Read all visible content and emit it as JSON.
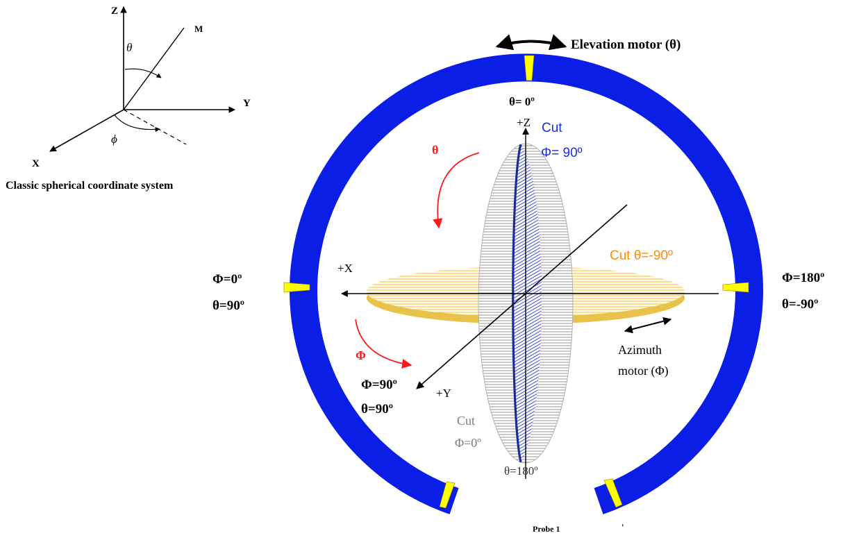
{
  "inset": {
    "axis_z": "Z",
    "axis_y": "Y",
    "axis_x": "X",
    "point_m": "M",
    "theta": "θ",
    "phi": "ϕ",
    "caption": "Classic spherical coordinate system"
  },
  "main": {
    "elevation_label": "Elevation motor (θ)",
    "theta_zero": "θ= 0º",
    "plus_z": "+Z",
    "cut_phi90_line1": "Cut",
    "cut_phi90_line2": "Φ= 90º",
    "theta_red": "θ",
    "cut_theta90": "Cut  θ=-90º",
    "plus_x": "+X",
    "left_phi": "Φ=0º",
    "left_theta": "θ=90º",
    "right_phi": "Φ=180º",
    "right_theta": "θ=-90º",
    "azimuth_line1": "Azimuth",
    "azimuth_line2": "motor (Φ)",
    "phi_red": "Φ",
    "bottom_phi": "Φ=90º",
    "bottom_theta": "θ=90º",
    "plus_y": "+Y",
    "cut_phi0_line1": "Cut",
    "cut_phi0_line2": "Φ=0º",
    "theta_180": "θ=180º",
    "probe": "Probe 1",
    "stray_mark": "'"
  },
  "colors": {
    "ring": "#0a1ee6",
    "marker": "#ffff00",
    "red": "#ff1a1a",
    "blue_text": "#1a2ee0",
    "orange": "#ff8c00",
    "gold": "#d4a20a",
    "gold_fill": "#f7e8a8",
    "gray_text": "#7a7a7a"
  }
}
